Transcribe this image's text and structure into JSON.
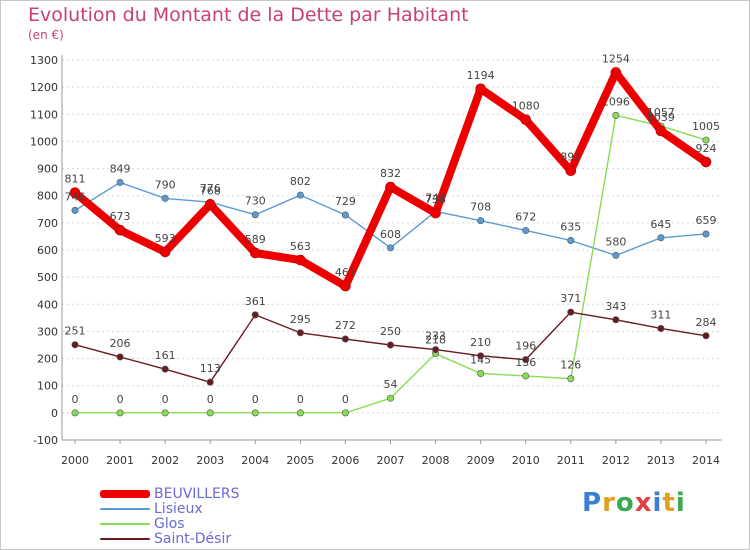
{
  "header": {
    "title": "Evolution du Montant de la Dette par Habitant",
    "unit": "(en €)"
  },
  "logo": {
    "text": "Proxiti"
  },
  "chart_data": {
    "type": "line",
    "title": "Evolution du Montant de la Dette par Habitant",
    "ylabel": "(en €)",
    "xlabel": "",
    "x": [
      "2000",
      "2001",
      "2002",
      "2003",
      "2004",
      "2005",
      "2006",
      "2007",
      "2008",
      "2009",
      "2010",
      "2011",
      "2012",
      "2013",
      "2014"
    ],
    "ylim": [
      -100,
      1300
    ],
    "yticks": [
      "-100",
      "0",
      "100",
      "200",
      "300",
      "400",
      "500",
      "600",
      "700",
      "800",
      "900",
      "1000",
      "1100",
      "1200",
      "1300"
    ],
    "grid": "horizontal dashed",
    "legend": "bottom-left",
    "series": [
      {
        "name": "Lisieux",
        "color": "#5b9bd5",
        "values": [
          746,
          849,
          790,
          776,
          730,
          802,
          729,
          608,
          742,
          708,
          672,
          635,
          580,
          645,
          659
        ],
        "labels": [
          "746",
          "849",
          "790",
          "776",
          "730",
          "802",
          "729",
          "608",
          "742",
          "708",
          "672",
          "635",
          "580",
          "645",
          "659"
        ]
      },
      {
        "name": "Glos",
        "color": "#88dd55",
        "values": [
          0,
          0,
          0,
          0,
          0,
          0,
          0,
          54,
          218,
          145,
          136,
          126,
          1096,
          1057,
          1005
        ],
        "labels": [
          "0",
          "0",
          "0",
          "0",
          "0",
          "0",
          "0",
          "54",
          "218",
          "145",
          "136",
          "126",
          "1096",
          "1057",
          "1005"
        ]
      },
      {
        "name": "Saint-Désir",
        "color": "#6b1a22",
        "values": [
          251,
          206,
          161,
          113,
          361,
          295,
          272,
          250,
          233,
          210,
          196,
          371,
          343,
          311,
          284
        ],
        "labels": [
          "251",
          "206",
          "161",
          "113",
          "361",
          "295",
          "272",
          "250",
          "233",
          "210",
          "196",
          "371",
          "343",
          "311",
          "284"
        ]
      },
      {
        "name": "BEUVILLERS",
        "color": "#ee0000",
        "values": [
          811,
          673,
          593,
          768,
          589,
          563,
          467,
          832,
          736,
          1194,
          1080,
          892,
          1254,
          1039,
          924
        ],
        "labels": [
          "811",
          "673",
          "593",
          "768",
          "589",
          "563",
          "467",
          "832",
          "736",
          "1194",
          "1080",
          "892",
          "1254",
          "1039",
          "924"
        ]
      }
    ]
  },
  "legend": {
    "items": [
      {
        "name": "BEUVILLERS",
        "color": "#ee0000"
      },
      {
        "name": "Lisieux",
        "color": "#5b9bd5"
      },
      {
        "name": "Glos",
        "color": "#88dd55"
      },
      {
        "name": "Saint-Désir",
        "color": "#6b1a22"
      }
    ]
  }
}
